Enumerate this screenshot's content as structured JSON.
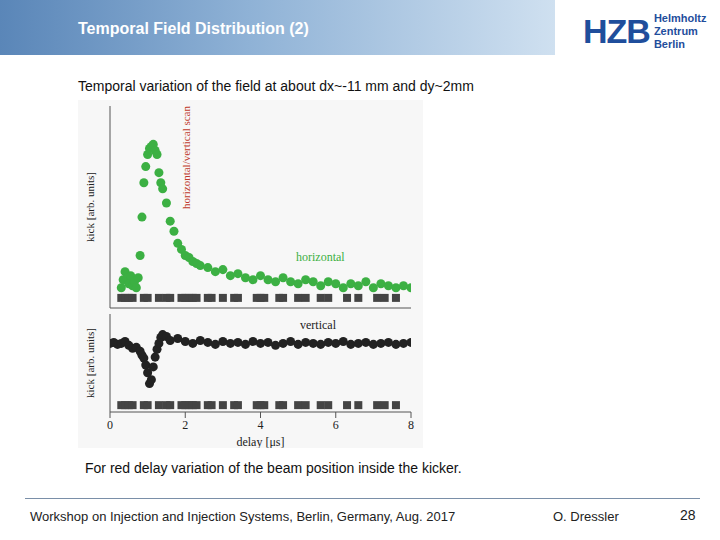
{
  "slide": {
    "title": "Temporal Field Distribution (2)",
    "logo": {
      "main": "HZB",
      "line1": "Helmholtz",
      "line2": "Zentrum Berlin"
    },
    "subtitle": "Temporal variation of the field at about dx~-11 mm and dy~2mm",
    "caption": "For red delay variation of the beam position inside the kicker.",
    "footer": {
      "event": "Workshop on Injection and Injection Systems, Berlin, Germany, Aug. 2017",
      "author": "O. Dressler",
      "page": 28
    }
  },
  "annotation": "horizontal/vertical scan",
  "chart_data": [
    {
      "type": "scatter",
      "ylabel": "kick [arb. units]",
      "xlim": [
        0,
        8
      ],
      "ylim": [
        0,
        10
      ],
      "tick_labels": false,
      "series": [
        {
          "name": "horizontal",
          "color": "#3cb043",
          "marker": "circle",
          "x": [
            0.3,
            0.35,
            0.4,
            0.45,
            0.5,
            0.55,
            0.6,
            0.65,
            0.7,
            0.75,
            0.8,
            0.85,
            0.9,
            0.95,
            1.0,
            1.05,
            1.1,
            1.15,
            1.2,
            1.25,
            1.3,
            1.35,
            1.4,
            1.5,
            1.6,
            1.7,
            1.8,
            1.9,
            2.0,
            2.1,
            2.2,
            2.3,
            2.4,
            2.6,
            2.8,
            3.0,
            3.2,
            3.4,
            3.6,
            3.8,
            4.0,
            4.2,
            4.4,
            4.6,
            4.8,
            5.0,
            5.2,
            5.4,
            5.6,
            5.8,
            6.0,
            6.2,
            6.4,
            6.6,
            6.8,
            7.0,
            7.2,
            7.4,
            7.6,
            7.8,
            8.0
          ],
          "values": [
            1.0,
            1.4,
            1.8,
            1.5,
            1.2,
            1.6,
            1.1,
            1.3,
            1.0,
            1.5,
            2.6,
            4.5,
            6.2,
            7.0,
            7.6,
            7.9,
            8.0,
            8.1,
            7.8,
            7.6,
            6.7,
            6.2,
            5.9,
            5.2,
            4.3,
            3.8,
            3.2,
            2.9,
            2.6,
            2.5,
            2.3,
            2.2,
            2.1,
            2.0,
            1.8,
            1.9,
            1.6,
            1.7,
            1.5,
            1.4,
            1.6,
            1.4,
            1.3,
            1.5,
            1.3,
            1.2,
            1.4,
            1.3,
            1.1,
            1.3,
            1.2,
            1.0,
            1.2,
            1.1,
            1.3,
            1.0,
            1.2,
            1.1,
            1.0,
            1.1,
            1.0
          ]
        },
        {
          "color": "#444444",
          "marker": "square",
          "x": [
            0.3,
            0.4,
            0.5,
            0.6,
            0.9,
            1.0,
            1.3,
            1.5,
            1.6,
            1.9,
            2.0,
            2.1,
            2.2,
            2.3,
            2.6,
            2.7,
            3.0,
            3.3,
            3.4,
            3.9,
            4.0,
            4.1,
            4.5,
            4.6,
            5.0,
            5.2,
            5.6,
            5.8,
            6.3,
            6.6,
            7.1,
            7.3,
            7.6
          ],
          "values": [
            0.5,
            0.5,
            0.5,
            0.5,
            0.5,
            0.5,
            0.5,
            0.5,
            0.5,
            0.5,
            0.5,
            0.5,
            0.5,
            0.5,
            0.5,
            0.5,
            0.5,
            0.5,
            0.5,
            0.5,
            0.5,
            0.5,
            0.5,
            0.5,
            0.5,
            0.5,
            0.5,
            0.5,
            0.5,
            0.5,
            0.5,
            0.5,
            0.5
          ]
        }
      ]
    },
    {
      "type": "scatter",
      "ylabel": "kick [arb. units]",
      "xlabel": "delay [μs]",
      "xlim": [
        0,
        8
      ],
      "ylim": [
        0,
        10
      ],
      "xticks": [
        0,
        2,
        4,
        6,
        8
      ],
      "tick_labels": "x",
      "series": [
        {
          "name": "vertical",
          "color": "#222222",
          "marker": "circle",
          "x": [
            0.0,
            0.1,
            0.2,
            0.3,
            0.4,
            0.5,
            0.6,
            0.7,
            0.8,
            0.85,
            0.9,
            0.95,
            1.0,
            1.05,
            1.1,
            1.15,
            1.2,
            1.25,
            1.3,
            1.35,
            1.4,
            1.5,
            1.6,
            1.8,
            2.0,
            2.2,
            2.4,
            2.6,
            2.8,
            3.0,
            3.2,
            3.4,
            3.6,
            3.8,
            4.0,
            4.2,
            4.4,
            4.6,
            4.8,
            5.0,
            5.2,
            5.4,
            5.6,
            5.8,
            6.0,
            6.2,
            6.4,
            6.6,
            6.8,
            7.0,
            7.2,
            7.4,
            7.6,
            7.8,
            8.0
          ],
          "values": [
            7.0,
            7.1,
            6.9,
            7.0,
            7.2,
            6.8,
            6.5,
            6.6,
            6.2,
            5.8,
            5.5,
            4.8,
            4.0,
            2.9,
            3.3,
            4.6,
            5.6,
            6.4,
            7.0,
            7.6,
            7.9,
            7.7,
            7.3,
            7.5,
            7.2,
            7.0,
            7.3,
            7.1,
            6.9,
            7.2,
            7.0,
            7.1,
            6.9,
            7.2,
            7.0,
            7.1,
            6.8,
            7.0,
            7.2,
            6.9,
            7.1,
            7.0,
            6.9,
            7.1,
            7.0,
            7.2,
            6.9,
            7.0,
            7.1,
            6.9,
            7.0,
            7.1,
            6.9,
            7.0,
            7.1
          ]
        },
        {
          "color": "#444444",
          "marker": "square",
          "x": [
            0.3,
            0.4,
            0.5,
            0.6,
            0.9,
            1.0,
            1.3,
            1.5,
            1.6,
            1.9,
            2.0,
            2.1,
            2.2,
            2.3,
            2.6,
            2.7,
            3.0,
            3.3,
            3.4,
            3.9,
            4.0,
            4.1,
            4.5,
            4.6,
            5.0,
            5.2,
            5.6,
            5.8,
            6.3,
            6.6,
            7.1,
            7.3,
            7.6
          ],
          "values": [
            0.7,
            0.7,
            0.7,
            0.7,
            0.7,
            0.7,
            0.7,
            0.7,
            0.7,
            0.7,
            0.7,
            0.7,
            0.7,
            0.7,
            0.7,
            0.7,
            0.7,
            0.7,
            0.7,
            0.7,
            0.7,
            0.7,
            0.7,
            0.7,
            0.7,
            0.7,
            0.7,
            0.7,
            0.7,
            0.7,
            0.7,
            0.7,
            0.7
          ]
        }
      ]
    }
  ]
}
